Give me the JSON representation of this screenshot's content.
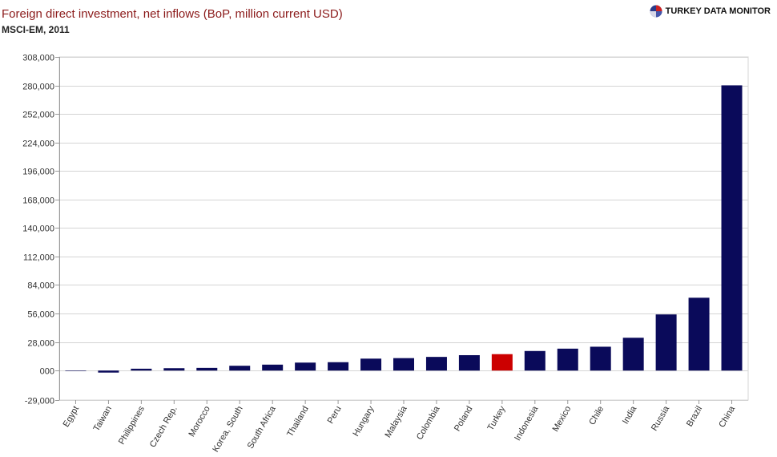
{
  "header": {
    "title": "Foreign direct investment, net inflows (BoP, million current USD)",
    "subtitle": "MSCI-EM, 2011",
    "brand": "TURKEY DATA MONITOR"
  },
  "colors": {
    "bar": "#0a0a5a",
    "highlight": "#cc0000",
    "grid": "#d4d4d4",
    "axis": "#999999",
    "title": "#8b1a1a"
  },
  "chart_data": {
    "type": "bar",
    "title": "Foreign direct investment, net inflows (BoP, million current USD)",
    "subtitle": "MSCI-EM, 2011",
    "xlabel": "",
    "ylabel": "",
    "ylim": [
      -29000,
      308000
    ],
    "yticks": [
      -29000,
      0,
      28000,
      56000,
      84000,
      112000,
      140000,
      168000,
      196000,
      224000,
      252000,
      280000,
      308000
    ],
    "ytick_labels": [
      "-29,000",
      "000",
      "28,000",
      "56,000",
      "84,000",
      "112,000",
      "140,000",
      "168,000",
      "196,000",
      "224,000",
      "252,000",
      "280,000",
      "308,000"
    ],
    "categories": [
      "Egypt",
      "Taiwan",
      "Philippines",
      "Czech Rep.",
      "Morocco",
      "Korea, South",
      "South Africa",
      "Thailand",
      "Peru",
      "Hungary",
      "Malaysia",
      "Colombia",
      "Poland",
      "Turkey",
      "Indonesia",
      "Mexico",
      "Chile",
      "India",
      "Russia",
      "Brazil",
      "China"
    ],
    "values": [
      -500,
      -2000,
      1800,
      2300,
      2600,
      4700,
      5800,
      7800,
      8200,
      11700,
      12200,
      13400,
      15100,
      16100,
      19200,
      21500,
      23400,
      32200,
      55100,
      71500,
      280100
    ],
    "highlight_category": "Turkey",
    "grid": true,
    "legend": "none"
  }
}
